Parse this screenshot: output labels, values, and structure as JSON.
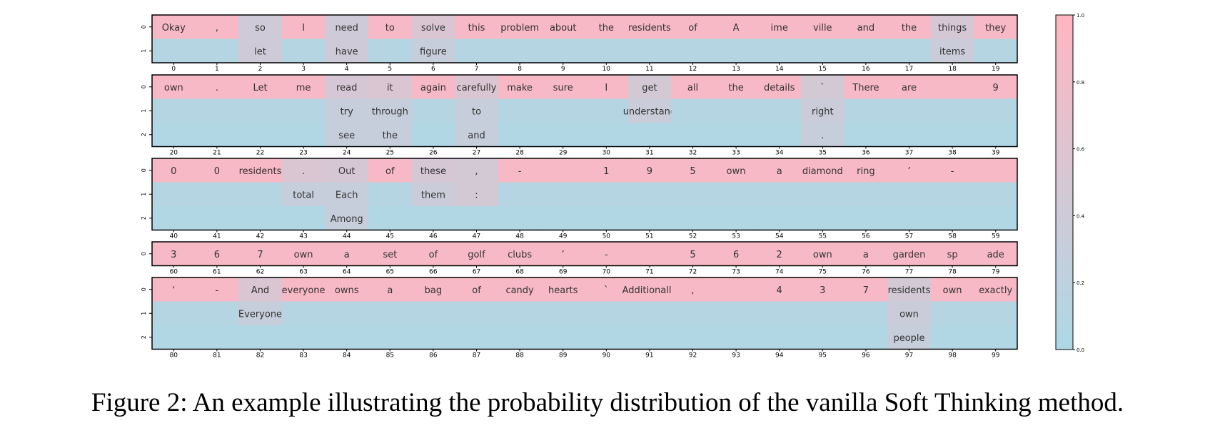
{
  "caption": "Figure 2: An example illustrating the probability distribution of the vanilla Soft Thinking method.",
  "chart_data": {
    "type": "heatmap",
    "colors": {
      "low": "#add8e6",
      "high": "#ffb6c1",
      "low_value": 0.0,
      "high_value": 1.0
    },
    "colorbar": {
      "ticks": [
        "0.0",
        "0.2",
        "0.4",
        "0.6",
        "0.8",
        "1.0"
      ]
    },
    "panels": [
      {
        "x_ticks": [
          0,
          1,
          2,
          3,
          4,
          5,
          6,
          7,
          8,
          9,
          10,
          11,
          12,
          13,
          14,
          15,
          16,
          17,
          18,
          19
        ],
        "rows": [
          [
            "Okay",
            ",",
            "so",
            "I",
            "need",
            "to",
            "solve",
            "this",
            "problem",
            "about",
            "the",
            "residents",
            "of",
            "A",
            "ime",
            "ville",
            "and",
            "the",
            "things",
            "they"
          ],
          [
            "",
            "",
            "let",
            "",
            "have",
            "",
            "figure",
            "",
            "",
            "",
            "",
            "",
            "",
            "",
            "",
            "",
            "",
            "",
            "items",
            ""
          ]
        ],
        "probs": [
          [
            0.9,
            0.9,
            0.4,
            0.9,
            0.4,
            0.9,
            0.55,
            0.9,
            0.9,
            0.9,
            0.9,
            0.9,
            0.9,
            0.9,
            0.9,
            0.9,
            0.9,
            0.9,
            0.5,
            0.9
          ],
          [
            0.1,
            0.1,
            0.4,
            0.1,
            0.4,
            0.1,
            0.3,
            0.1,
            0.1,
            0.1,
            0.1,
            0.1,
            0.1,
            0.1,
            0.1,
            0.1,
            0.1,
            0.1,
            0.35,
            0.1
          ]
        ]
      },
      {
        "x_ticks": [
          20,
          21,
          22,
          23,
          24,
          25,
          26,
          27,
          28,
          29,
          30,
          31,
          32,
          33,
          34,
          35,
          36,
          37,
          38,
          39
        ],
        "rows": [
          [
            "own",
            ".",
            "Let",
            "me",
            "read",
            "it",
            "again",
            "carefully",
            "make",
            "sure",
            "I",
            "get",
            "all",
            "the",
            "details",
            "`",
            "There",
            "are",
            "",
            "9"
          ],
          [
            "",
            "",
            "",
            "",
            "try",
            "through",
            "",
            "to",
            "",
            "",
            "",
            "understand",
            "",
            "",
            "",
            "right",
            "",
            "",
            "",
            ""
          ],
          [
            "",
            "",
            "",
            "",
            "see",
            "the",
            "",
            "and",
            "",
            "",
            "",
            "",
            "",
            "",
            "",
            ".",
            "",
            "",
            "",
            ""
          ]
        ],
        "probs": [
          [
            0.9,
            0.9,
            0.9,
            0.9,
            0.5,
            0.55,
            0.9,
            0.55,
            0.9,
            0.9,
            0.9,
            0.45,
            0.9,
            0.9,
            0.9,
            0.45,
            0.9,
            0.9,
            0.9,
            0.9
          ],
          [
            0.1,
            0.1,
            0.1,
            0.1,
            0.3,
            0.3,
            0.1,
            0.3,
            0.1,
            0.1,
            0.1,
            0.35,
            0.1,
            0.1,
            0.1,
            0.35,
            0.1,
            0.1,
            0.1,
            0.1
          ],
          [
            0.05,
            0.05,
            0.05,
            0.05,
            0.3,
            0.3,
            0.05,
            0.3,
            0.05,
            0.05,
            0.05,
            0.05,
            0.05,
            0.05,
            0.05,
            0.3,
            0.05,
            0.05,
            0.05,
            0.05
          ]
        ]
      },
      {
        "x_ticks": [
          40,
          41,
          42,
          43,
          44,
          45,
          46,
          47,
          48,
          49,
          50,
          51,
          52,
          53,
          54,
          55,
          56,
          57,
          58,
          59
        ],
        "rows": [
          [
            "0",
            "0",
            "residents",
            ".",
            "Out",
            "of",
            "these",
            ",",
            "-",
            "",
            "1",
            "9",
            "5",
            "own",
            "a",
            "diamond",
            "ring",
            "’",
            "-",
            ""
          ],
          [
            "",
            "",
            "",
            "total",
            "Each",
            "",
            "them",
            ":",
            "",
            "",
            "",
            "",
            "",
            "",
            "",
            "",
            "",
            "",
            "",
            ""
          ],
          [
            "",
            "",
            "",
            "",
            "Among",
            "",
            "",
            "",
            "",
            "",
            "",
            "",
            "",
            "",
            "",
            "",
            "",
            "",
            "",
            ""
          ]
        ],
        "probs": [
          [
            0.9,
            0.9,
            0.9,
            0.55,
            0.5,
            0.9,
            0.5,
            0.45,
            0.9,
            0.9,
            0.9,
            0.9,
            0.9,
            0.9,
            0.9,
            0.9,
            0.9,
            0.9,
            0.9,
            0.9
          ],
          [
            0.1,
            0.1,
            0.1,
            0.3,
            0.3,
            0.1,
            0.35,
            0.45,
            0.1,
            0.1,
            0.1,
            0.1,
            0.1,
            0.1,
            0.1,
            0.1,
            0.1,
            0.1,
            0.1,
            0.1
          ],
          [
            0.05,
            0.05,
            0.05,
            0.05,
            0.3,
            0.05,
            0.05,
            0.05,
            0.05,
            0.05,
            0.05,
            0.05,
            0.05,
            0.05,
            0.05,
            0.05,
            0.05,
            0.05,
            0.05,
            0.05
          ]
        ]
      },
      {
        "x_ticks": [
          60,
          61,
          62,
          63,
          64,
          65,
          66,
          67,
          68,
          69,
          70,
          71,
          72,
          73,
          74,
          75,
          76,
          77,
          78,
          79
        ],
        "rows": [
          [
            "3",
            "6",
            "7",
            "own",
            "a",
            "set",
            "of",
            "golf",
            "clubs",
            "’",
            "-",
            "",
            "5",
            "6",
            "2",
            "own",
            "a",
            "garden",
            "sp",
            "ade"
          ]
        ],
        "probs": [
          [
            0.9,
            0.9,
            0.9,
            0.9,
            0.9,
            0.9,
            0.9,
            0.9,
            0.9,
            0.9,
            0.9,
            0.9,
            0.9,
            0.9,
            0.9,
            0.9,
            0.9,
            0.9,
            0.9,
            0.9
          ]
        ]
      },
      {
        "x_ticks": [
          80,
          81,
          82,
          83,
          84,
          85,
          86,
          87,
          88,
          89,
          90,
          91,
          92,
          93,
          94,
          95,
          96,
          97,
          98,
          99
        ],
        "rows": [
          [
            "‘",
            "-",
            "And",
            "everyone",
            "owns",
            "a",
            "bag",
            "of",
            "candy",
            "hearts",
            "`",
            "Additionally",
            ",",
            "",
            "4",
            "3",
            "7",
            "residents",
            "own",
            "exactly"
          ],
          [
            "",
            "",
            "Everyone",
            "",
            "",
            "",
            "",
            "",
            "",
            "",
            "",
            "",
            "",
            "",
            "",
            "",
            "",
            "own",
            "",
            ""
          ],
          [
            "",
            "",
            "",
            "",
            "",
            "",
            "",
            "",
            "",
            "",
            "",
            "",
            "",
            "",
            "",
            "",
            "",
            "people",
            "",
            ""
          ]
        ],
        "probs": [
          [
            0.9,
            0.9,
            0.55,
            0.9,
            0.9,
            0.9,
            0.9,
            0.9,
            0.9,
            0.9,
            0.9,
            0.9,
            0.9,
            0.9,
            0.9,
            0.9,
            0.9,
            0.45,
            0.9,
            0.9
          ],
          [
            0.1,
            0.1,
            0.3,
            0.1,
            0.1,
            0.1,
            0.1,
            0.1,
            0.1,
            0.1,
            0.1,
            0.1,
            0.1,
            0.1,
            0.1,
            0.1,
            0.1,
            0.35,
            0.1,
            0.1
          ],
          [
            0.05,
            0.05,
            0.05,
            0.05,
            0.05,
            0.05,
            0.05,
            0.05,
            0.05,
            0.05,
            0.05,
            0.05,
            0.05,
            0.05,
            0.05,
            0.05,
            0.05,
            0.3,
            0.05,
            0.05
          ]
        ]
      }
    ]
  }
}
